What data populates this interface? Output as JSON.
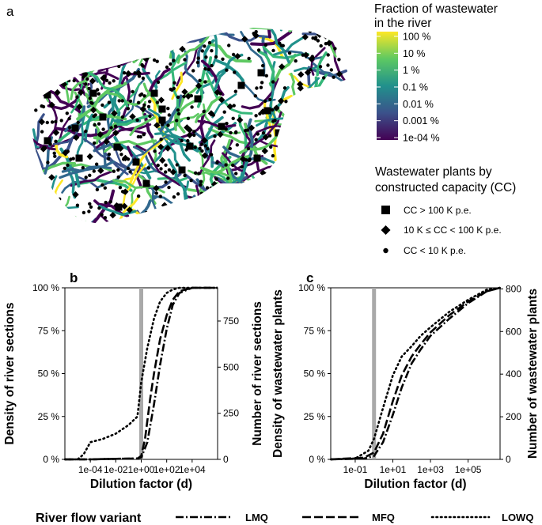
{
  "panels": {
    "a": "a",
    "b": "b",
    "c": "c"
  },
  "map": {
    "colorbar": {
      "title_line1": "Fraction of wastewater",
      "title_line2": "in the river",
      "ticks": [
        "100 %",
        "10 %",
        "1 %",
        "0.1 %",
        "0.01 %",
        "0.001 %",
        "1e-04 %"
      ],
      "colors": [
        "#fde725",
        "#5ec962",
        "#21918c",
        "#3b528b",
        "#440154"
      ]
    },
    "plants_legend": {
      "title_line1": "Wastewater plants by",
      "title_line2": "constructed capacity (CC)",
      "items": [
        {
          "symbol": "square",
          "label": "CC > 100 K p.e."
        },
        {
          "symbol": "diamond",
          "label": "10 K ≤ CC < 100 K p.e."
        },
        {
          "symbol": "circle",
          "label": "CC < 10 K p.e."
        }
      ]
    }
  },
  "chart_data": [
    {
      "type": "line",
      "panel": "b",
      "xlabel": "Dilution factor (d)",
      "ylabel": "Density of river sections",
      "y2label": "Number of river sections",
      "x_scale": "log10",
      "xlim": [
        1e-06,
        1000000.0
      ],
      "ylim": [
        0,
        1
      ],
      "x_ticks": [
        {
          "v": 0.0001,
          "label": "1e-04"
        },
        {
          "v": 0.01,
          "label": "1e-02"
        },
        {
          "v": 1,
          "label": "1e+00"
        },
        {
          "v": 100,
          "label": "1e+02"
        },
        {
          "v": 10000,
          "label": "1e+04"
        }
      ],
      "y_ticks": [
        {
          "v": 0,
          "label": "0 %"
        },
        {
          "v": 0.25,
          "label": "25 %"
        },
        {
          "v": 0.5,
          "label": "50 %"
        },
        {
          "v": 0.75,
          "label": "75 %"
        },
        {
          "v": 1,
          "label": "100 %"
        }
      ],
      "y2_ticks": [
        {
          "v": 0,
          "label": "0"
        },
        {
          "v": 250,
          "label": "250"
        },
        {
          "v": 500,
          "label": "500"
        },
        {
          "v": 750,
          "label": "750"
        }
      ],
      "y2_max": 930,
      "vline_x": 1,
      "series": [
        {
          "name": "LMQ",
          "dash": "lmq",
          "x": [
            1e-06,
            0.0001,
            0.01,
            0.5,
            1,
            3,
            10,
            30,
            100,
            300,
            1000,
            10000,
            1000000
          ],
          "y": [
            0,
            0,
            0.003,
            0.005,
            0.01,
            0.1,
            0.32,
            0.55,
            0.76,
            0.9,
            0.97,
            1.0,
            1.0
          ]
        },
        {
          "name": "MFQ",
          "dash": "mfq",
          "x": [
            1e-06,
            0.0001,
            0.01,
            0.5,
            1,
            2,
            5,
            10,
            30,
            100,
            300,
            1000,
            10000,
            1000000
          ],
          "y": [
            0,
            0,
            0.003,
            0.005,
            0.02,
            0.12,
            0.35,
            0.5,
            0.7,
            0.84,
            0.93,
            0.98,
            1.0,
            1.0
          ]
        },
        {
          "name": "LOWQ",
          "dash": "lowq",
          "x": [
            1e-06,
            1e-05,
            3e-05,
            0.0001,
            0.001,
            0.01,
            0.1,
            0.5,
            1,
            3,
            10,
            30,
            100,
            300,
            1000,
            1000000
          ],
          "y": [
            0,
            0,
            0.03,
            0.1,
            0.12,
            0.15,
            0.2,
            0.25,
            0.45,
            0.65,
            0.82,
            0.92,
            0.97,
            0.99,
            1.0,
            1.0
          ]
        }
      ]
    },
    {
      "type": "line",
      "panel": "c",
      "xlabel": "Dilution factor (d)",
      "ylabel": "Density of wastewater plants",
      "y2label": "Number of wastewater plants",
      "x_scale": "log10",
      "xlim": [
        0.005,
        5000000
      ],
      "ylim": [
        0,
        1
      ],
      "x_ticks": [
        {
          "v": 0.1,
          "label": "1e-01"
        },
        {
          "v": 10,
          "label": "1e+01"
        },
        {
          "v": 1000,
          "label": "1e+03"
        },
        {
          "v": 100000,
          "label": "1e+05"
        }
      ],
      "y_ticks": [
        {
          "v": 0,
          "label": "0 %"
        },
        {
          "v": 0.25,
          "label": "25 %"
        },
        {
          "v": 0.5,
          "label": "50 %"
        },
        {
          "v": 0.75,
          "label": "75 %"
        },
        {
          "v": 1,
          "label": "100 %"
        }
      ],
      "y2_ticks": [
        {
          "v": 0,
          "label": "0"
        },
        {
          "v": 200,
          "label": "200"
        },
        {
          "v": 400,
          "label": "400"
        },
        {
          "v": 600,
          "label": "600"
        },
        {
          "v": 800,
          "label": "800"
        }
      ],
      "y2_max": 805,
      "vline_x": 1,
      "series": [
        {
          "name": "LMQ",
          "dash": "lmq",
          "x": [
            0.005,
            0.3,
            1,
            3,
            10,
            30,
            100,
            300,
            1000,
            10000,
            100000,
            1000000,
            5000000
          ],
          "y": [
            0,
            0.005,
            0.02,
            0.1,
            0.26,
            0.42,
            0.56,
            0.64,
            0.72,
            0.82,
            0.91,
            0.98,
            1.0
          ]
        },
        {
          "name": "MFQ",
          "dash": "mfq",
          "x": [
            0.005,
            0.3,
            1,
            3,
            10,
            30,
            100,
            300,
            1000,
            10000,
            100000,
            1000000,
            5000000
          ],
          "y": [
            0,
            0.01,
            0.04,
            0.15,
            0.34,
            0.49,
            0.6,
            0.67,
            0.74,
            0.84,
            0.92,
            0.98,
            1.0
          ]
        },
        {
          "name": "LOWQ",
          "dash": "lowq",
          "x": [
            0.005,
            0.1,
            0.5,
            1,
            3,
            10,
            30,
            100,
            300,
            1000,
            10000,
            100000,
            1000000,
            5000000
          ],
          "y": [
            0,
            0.005,
            0.05,
            0.12,
            0.3,
            0.49,
            0.6,
            0.66,
            0.72,
            0.77,
            0.86,
            0.93,
            0.99,
            1.0
          ]
        }
      ]
    }
  ],
  "legend": {
    "title": "River flow variant",
    "items": [
      {
        "name": "LMQ",
        "dash": "lmq"
      },
      {
        "name": "MFQ",
        "dash": "mfq"
      },
      {
        "name": "LOWQ",
        "dash": "lowq"
      }
    ]
  }
}
